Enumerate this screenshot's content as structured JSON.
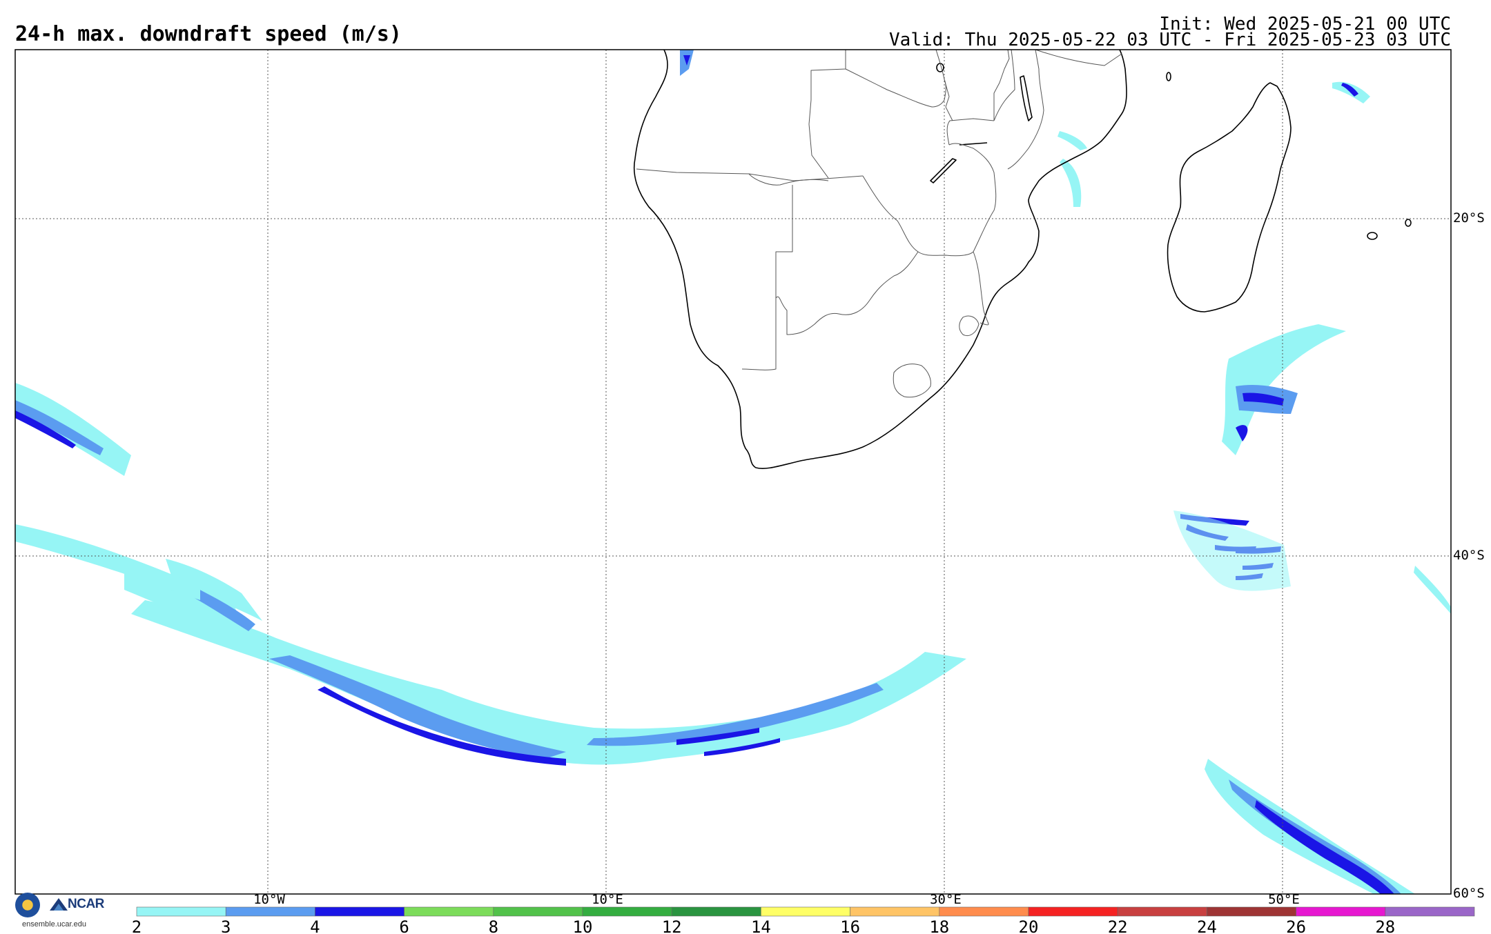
{
  "header": {
    "title": "24-h max. downdraft speed (m/s)",
    "init": "Init: Wed 2025-05-21 00 UTC",
    "valid": "Valid: Thu 2025-05-22 03 UTC - Fri 2025-05-23 03 UTC"
  },
  "map": {
    "projection": "equirectangular",
    "lon_range": [
      -25,
      60
    ],
    "lat_range": [
      -60,
      -10
    ],
    "gridlines": "dotted",
    "longitude_labels": [
      "10°W",
      "10°E",
      "30°E",
      "50°E"
    ],
    "latitude_labels": [
      "20°S",
      "40°S",
      "60°S"
    ],
    "features": [
      "coastlines",
      "country-borders",
      "Madagascar",
      "Lesotho",
      "Eswatini"
    ]
  },
  "colorbar": {
    "units": "m/s",
    "tick_labels": [
      "2",
      "3",
      "4",
      "6",
      "8",
      "10",
      "12",
      "14",
      "16",
      "18",
      "20",
      "22",
      "24",
      "26",
      "28"
    ],
    "colors": [
      "#96f5f5",
      "#5b9cf0",
      "#1a15e6",
      "#7cdc5a",
      "#52c24a",
      "#34ad40",
      "#2a9440",
      "#ffff66",
      "#ffc466",
      "#ff8c4d",
      "#f52222",
      "#c84040",
      "#9e3434",
      "#e617d0",
      "#9a66c8"
    ]
  },
  "logos": {
    "org1": "NSF",
    "org2": "NCAR",
    "url": "ensemble.ucar.edu"
  }
}
